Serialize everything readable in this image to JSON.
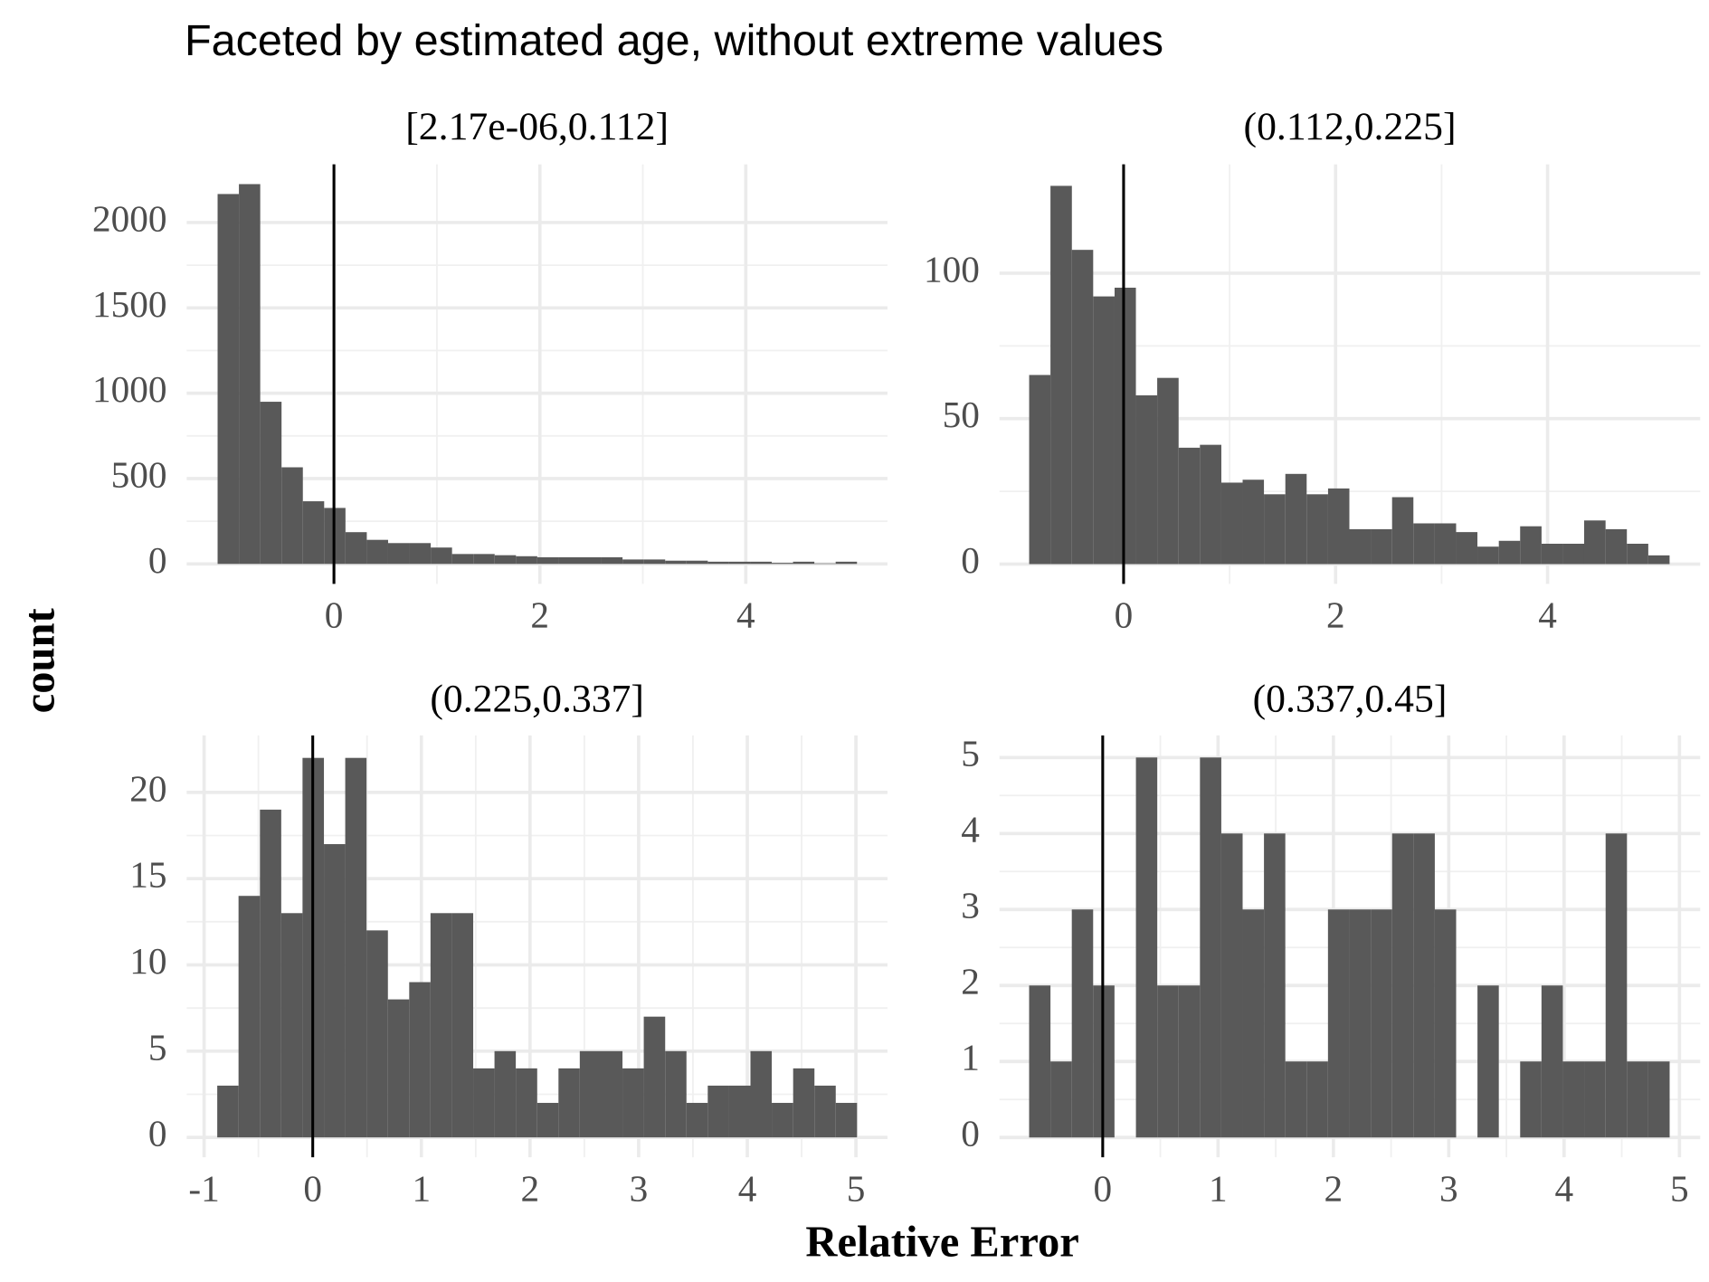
{
  "title": "Faceted by estimated age, without extreme values",
  "x_label": "Relative Error",
  "y_label": "count",
  "chart_data": [
    {
      "type": "histogram",
      "title": "[2.17e-06,0.112]",
      "color": "#595959",
      "grid": true,
      "reference_line_x": 0,
      "bins": [
        -1.13,
        -0.923,
        -0.716,
        -0.509,
        -0.302,
        -0.095,
        0.112,
        0.319,
        0.526,
        0.733,
        0.94,
        1.147,
        1.354,
        1.561,
        1.768,
        1.975,
        2.182,
        2.389,
        2.596,
        2.803,
        3.01,
        3.217,
        3.424,
        3.631,
        3.838,
        4.045,
        4.252,
        4.459,
        4.666,
        4.873,
        5.08
      ],
      "values": [
        2167,
        2225,
        950,
        566,
        367,
        328,
        186,
        141,
        122,
        122,
        96,
        58,
        58,
        51,
        45,
        39,
        39,
        39,
        39,
        26,
        26,
        19,
        19,
        13,
        13,
        13,
        6,
        13,
        3,
        13
      ],
      "xlim": [
        -1.43,
        5.376
      ],
      "ylim": [
        -117,
        2341
      ],
      "xticks": [
        0,
        2,
        4
      ],
      "yticks": [
        0,
        500,
        1000,
        1500,
        2000
      ]
    },
    {
      "type": "histogram",
      "title": "(0.112,0.225]",
      "color": "#595959",
      "grid": true,
      "reference_line_x": 0,
      "bins": [
        -0.891,
        -0.69,
        -0.488,
        -0.287,
        -0.085,
        0.116,
        0.317,
        0.519,
        0.72,
        0.922,
        1.123,
        1.324,
        1.526,
        1.727,
        1.929,
        2.13,
        2.331,
        2.533,
        2.734,
        2.936,
        3.137,
        3.338,
        3.54,
        3.741,
        3.943,
        4.144,
        4.345,
        4.547,
        4.748,
        4.95,
        5.151
      ],
      "values": [
        65,
        130,
        108,
        92,
        95,
        58,
        64,
        40,
        41,
        28,
        29,
        24,
        31,
        24,
        26,
        12,
        12,
        23,
        14,
        14,
        11,
        6,
        8,
        13,
        7,
        7,
        15,
        12,
        7,
        3
      ],
      "xlim": [
        -1.171,
        5.44
      ],
      "ylim": [
        -6.8,
        137.4
      ],
      "xticks": [
        0,
        2,
        4
      ],
      "yticks": [
        0,
        50,
        100
      ]
    },
    {
      "type": "histogram",
      "title": "(0.225,0.337]",
      "color": "#595959",
      "grid": true,
      "reference_line_x": 0,
      "bins": [
        -0.879,
        -0.683,
        -0.486,
        -0.29,
        -0.094,
        0.103,
        0.299,
        0.495,
        0.692,
        0.888,
        1.084,
        1.28,
        1.477,
        1.673,
        1.869,
        2.066,
        2.262,
        2.458,
        2.655,
        2.851,
        3.047,
        3.244,
        3.44,
        3.636,
        3.833,
        4.029,
        4.225,
        4.422,
        4.618,
        4.814,
        5.01
      ],
      "values": [
        3,
        14,
        19,
        13,
        22,
        17,
        22,
        12,
        8,
        9,
        13,
        13,
        4,
        5,
        4,
        2,
        4,
        5,
        5,
        4,
        7,
        5,
        2,
        3,
        3,
        5,
        2,
        4,
        3,
        2
      ],
      "xlim": [
        -1.16,
        5.29
      ],
      "ylim": [
        -1.15,
        23.3
      ],
      "xticks": [
        -1,
        0,
        1,
        2,
        3,
        4,
        5
      ],
      "yticks": [
        0,
        5,
        10,
        15,
        20
      ]
    },
    {
      "type": "histogram",
      "title": "(0.337,0.45]",
      "color": "#595959",
      "grid": true,
      "reference_line_x": 0,
      "bins": [
        -0.638,
        -0.453,
        -0.268,
        -0.083,
        0.102,
        0.288,
        0.473,
        0.658,
        0.843,
        1.028,
        1.213,
        1.398,
        1.583,
        1.768,
        1.953,
        2.138,
        2.324,
        2.509,
        2.694,
        2.879,
        3.064,
        3.249,
        3.434,
        3.619,
        3.804,
        3.989,
        4.174,
        4.36,
        4.545,
        4.73,
        4.915
      ],
      "values": [
        2,
        1,
        3,
        2,
        0,
        5,
        2,
        2,
        5,
        4,
        3,
        4,
        1,
        1,
        3,
        3,
        3,
        4,
        4,
        3,
        0,
        2,
        0,
        1,
        2,
        1,
        1,
        4,
        1,
        1
      ],
      "xlim": [
        -0.895,
        5.18
      ],
      "ylim": [
        -0.26,
        5.29
      ],
      "xticks": [
        0,
        1,
        2,
        3,
        4,
        5
      ],
      "yticks": [
        0,
        1,
        2,
        3,
        4,
        5
      ]
    }
  ]
}
